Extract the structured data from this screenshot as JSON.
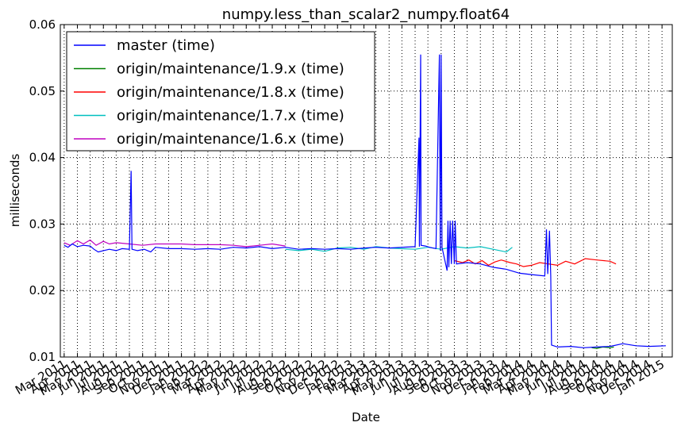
{
  "chart_data": {
    "type": "line",
    "title": "numpy.less_than_scalar2_numpy.float64",
    "xlabel": "Date",
    "ylabel": "milliseconds",
    "xlim": [
      "2011-02-20",
      "2015-01-25"
    ],
    "ylim": [
      0.01,
      0.06
    ],
    "grid": true,
    "legend_position": "top-left",
    "y_ticks": [
      "0.01",
      "0.02",
      "0.03",
      "0.04",
      "0.05",
      "0.06"
    ],
    "y_tick_values": [
      0.01,
      0.02,
      0.03,
      0.04,
      0.05,
      0.06
    ],
    "x_ticks": [
      {
        "date": "2011-03-01",
        "label": "Mar 2011"
      },
      {
        "date": "2011-04-01",
        "label": "Apr 2011"
      },
      {
        "date": "2011-05-01",
        "label": "May 2011"
      },
      {
        "date": "2011-06-01",
        "label": "Jun 2011"
      },
      {
        "date": "2011-07-01",
        "label": "Jul 2011"
      },
      {
        "date": "2011-08-01",
        "label": "Aug 2011"
      },
      {
        "date": "2011-09-01",
        "label": "Sep 2011"
      },
      {
        "date": "2011-10-01",
        "label": "Oct 2011"
      },
      {
        "date": "2011-11-01",
        "label": "Nov 2011"
      },
      {
        "date": "2011-12-01",
        "label": "Dec 2011"
      },
      {
        "date": "2012-01-01",
        "label": "Jan 2012"
      },
      {
        "date": "2012-02-01",
        "label": "Feb 2012"
      },
      {
        "date": "2012-03-01",
        "label": "Mar 2012"
      },
      {
        "date": "2012-04-01",
        "label": "Apr 2012"
      },
      {
        "date": "2012-05-01",
        "label": "May 2012"
      },
      {
        "date": "2012-06-01",
        "label": "Jun 2012"
      },
      {
        "date": "2012-07-01",
        "label": "Jul 2012"
      },
      {
        "date": "2012-08-01",
        "label": "Aug 2012"
      },
      {
        "date": "2012-09-01",
        "label": "Sep 2012"
      },
      {
        "date": "2012-10-01",
        "label": "Oct 2012"
      },
      {
        "date": "2012-11-01",
        "label": "Nov 2012"
      },
      {
        "date": "2012-12-01",
        "label": "Dec 2012"
      },
      {
        "date": "2013-01-01",
        "label": "Jan 2013"
      },
      {
        "date": "2013-02-01",
        "label": "Feb 2013"
      },
      {
        "date": "2013-03-01",
        "label": "Mar 2013"
      },
      {
        "date": "2013-04-01",
        "label": "Apr 2013"
      },
      {
        "date": "2013-05-01",
        "label": "May 2013"
      },
      {
        "date": "2013-06-01",
        "label": "Jun 2013"
      },
      {
        "date": "2013-07-01",
        "label": "Jul 2013"
      },
      {
        "date": "2013-08-01",
        "label": "Aug 2013"
      },
      {
        "date": "2013-09-01",
        "label": "Sep 2013"
      },
      {
        "date": "2013-10-01",
        "label": "Oct 2013"
      },
      {
        "date": "2013-11-01",
        "label": "Nov 2013"
      },
      {
        "date": "2013-12-01",
        "label": "Dec 2013"
      },
      {
        "date": "2014-01-01",
        "label": "Jan 2014"
      },
      {
        "date": "2014-02-01",
        "label": "Feb 2014"
      },
      {
        "date": "2014-03-01",
        "label": "Mar 2014"
      },
      {
        "date": "2014-04-01",
        "label": "Apr 2014"
      },
      {
        "date": "2014-05-01",
        "label": "May 2014"
      },
      {
        "date": "2014-06-01",
        "label": "Jun 2014"
      },
      {
        "date": "2014-07-01",
        "label": "Jul 2014"
      },
      {
        "date": "2014-08-01",
        "label": "Aug 2014"
      },
      {
        "date": "2014-09-01",
        "label": "Sep 2014"
      },
      {
        "date": "2014-10-01",
        "label": "Oct 2014"
      },
      {
        "date": "2014-11-01",
        "label": "Nov 2014"
      },
      {
        "date": "2014-12-01",
        "label": "Dec 2014"
      },
      {
        "date": "2015-01-01",
        "label": "Jan 2015"
      }
    ],
    "series": [
      {
        "name": "master (time)",
        "color": "#0000ff",
        "points": [
          [
            "2011-03-01",
            0.0268
          ],
          [
            "2011-03-10",
            0.0265
          ],
          [
            "2011-03-20",
            0.027
          ],
          [
            "2011-04-01",
            0.0266
          ],
          [
            "2011-04-15",
            0.0268
          ],
          [
            "2011-05-01",
            0.0267
          ],
          [
            "2011-05-10",
            0.0262
          ],
          [
            "2011-05-20",
            0.0258
          ],
          [
            "2011-06-01",
            0.026
          ],
          [
            "2011-06-15",
            0.0262
          ],
          [
            "2011-07-01",
            0.026
          ],
          [
            "2011-07-15",
            0.0263
          ],
          [
            "2011-08-01",
            0.0262
          ],
          [
            "2011-08-05",
            0.038
          ],
          [
            "2011-08-07",
            0.0262
          ],
          [
            "2011-08-20",
            0.026
          ],
          [
            "2011-09-05",
            0.0262
          ],
          [
            "2011-09-20",
            0.0258
          ],
          [
            "2011-10-01",
            0.0265
          ],
          [
            "2011-11-01",
            0.0263
          ],
          [
            "2011-12-01",
            0.0263
          ],
          [
            "2012-01-01",
            0.0262
          ],
          [
            "2012-02-01",
            0.0263
          ],
          [
            "2012-03-01",
            0.0262
          ],
          [
            "2012-04-01",
            0.0265
          ],
          [
            "2012-05-01",
            0.0264
          ],
          [
            "2012-06-01",
            0.0266
          ],
          [
            "2012-07-01",
            0.0263
          ],
          [
            "2012-08-01",
            0.0265
          ],
          [
            "2012-09-01",
            0.0262
          ],
          [
            "2012-10-01",
            0.0263
          ],
          [
            "2012-11-01",
            0.0262
          ],
          [
            "2012-12-01",
            0.0263
          ],
          [
            "2013-01-01",
            0.0262
          ],
          [
            "2013-02-01",
            0.0264
          ],
          [
            "2013-03-01",
            0.0265
          ],
          [
            "2013-04-01",
            0.0264
          ],
          [
            "2013-05-01",
            0.0265
          ],
          [
            "2013-06-01",
            0.0266
          ],
          [
            "2013-06-10",
            0.043
          ],
          [
            "2013-06-11",
            0.0266
          ],
          [
            "2013-06-14",
            0.0555
          ],
          [
            "2013-06-15",
            0.0268
          ],
          [
            "2013-06-25",
            0.0267
          ],
          [
            "2013-07-05",
            0.0265
          ],
          [
            "2013-07-20",
            0.0263
          ],
          [
            "2013-07-28",
            0.0555
          ],
          [
            "2013-07-30",
            0.026
          ],
          [
            "2013-08-01",
            0.0555
          ],
          [
            "2013-08-03",
            0.0265
          ],
          [
            "2013-08-15",
            0.023
          ],
          [
            "2013-08-17",
            0.0305
          ],
          [
            "2013-08-19",
            0.0235
          ],
          [
            "2013-08-22",
            0.0305
          ],
          [
            "2013-08-25",
            0.024
          ],
          [
            "2013-08-28",
            0.0305
          ],
          [
            "2013-09-01",
            0.024
          ],
          [
            "2013-09-03",
            0.0305
          ],
          [
            "2013-09-06",
            0.024
          ],
          [
            "2013-10-01",
            0.0242
          ],
          [
            "2013-11-01",
            0.024
          ],
          [
            "2013-12-01",
            0.0235
          ],
          [
            "2014-01-01",
            0.0232
          ],
          [
            "2014-02-01",
            0.0226
          ],
          [
            "2014-03-01",
            0.0224
          ],
          [
            "2014-04-01",
            0.0222
          ],
          [
            "2014-04-05",
            0.0292
          ],
          [
            "2014-04-08",
            0.0225
          ],
          [
            "2014-04-12",
            0.029
          ],
          [
            "2014-04-15",
            0.0222
          ],
          [
            "2014-04-17",
            0.0118
          ],
          [
            "2014-05-01",
            0.0115
          ],
          [
            "2014-06-01",
            0.0116
          ],
          [
            "2014-07-01",
            0.0114
          ],
          [
            "2014-08-01",
            0.0115
          ],
          [
            "2014-09-01",
            0.0116
          ],
          [
            "2014-10-01",
            0.012
          ],
          [
            "2014-11-01",
            0.0117
          ],
          [
            "2014-12-01",
            0.0116
          ],
          [
            "2015-01-10",
            0.0117
          ]
        ]
      },
      {
        "name": "origin/maintenance/1.9.x (time)",
        "color": "#008000",
        "points": [
          [
            "2014-07-20",
            0.0114
          ],
          [
            "2014-08-01",
            0.0113
          ],
          [
            "2014-08-15",
            0.0115
          ],
          [
            "2014-09-01",
            0.0114
          ],
          [
            "2014-09-10",
            0.0115
          ]
        ]
      },
      {
        "name": "origin/maintenance/1.8.x (time)",
        "color": "#ff0000",
        "points": [
          [
            "2013-09-01",
            0.0245
          ],
          [
            "2013-09-20",
            0.0242
          ],
          [
            "2013-10-05",
            0.0246
          ],
          [
            "2013-10-20",
            0.024
          ],
          [
            "2013-11-05",
            0.0245
          ],
          [
            "2013-11-20",
            0.0238
          ],
          [
            "2013-12-05",
            0.0243
          ],
          [
            "2013-12-20",
            0.0246
          ],
          [
            "2014-01-10",
            0.0242
          ],
          [
            "2014-01-25",
            0.024
          ],
          [
            "2014-02-10",
            0.0236
          ],
          [
            "2014-03-01",
            0.0238
          ],
          [
            "2014-03-20",
            0.0242
          ],
          [
            "2014-04-10",
            0.024
          ],
          [
            "2014-05-01",
            0.0238
          ],
          [
            "2014-05-20",
            0.0244
          ],
          [
            "2014-06-10",
            0.024
          ],
          [
            "2014-07-05",
            0.0248
          ],
          [
            "2014-08-01",
            0.0246
          ],
          [
            "2014-09-01",
            0.0244
          ],
          [
            "2014-09-15",
            0.024
          ]
        ]
      },
      {
        "name": "origin/maintenance/1.7.x (time)",
        "color": "#00bfbf",
        "points": [
          [
            "2012-08-01",
            0.0262
          ],
          [
            "2012-09-01",
            0.026
          ],
          [
            "2012-10-01",
            0.0262
          ],
          [
            "2012-11-01",
            0.0259
          ],
          [
            "2012-12-01",
            0.0264
          ],
          [
            "2013-01-01",
            0.0265
          ],
          [
            "2013-02-01",
            0.0262
          ],
          [
            "2013-03-01",
            0.0266
          ],
          [
            "2013-04-01",
            0.0264
          ],
          [
            "2013-05-01",
            0.0263
          ],
          [
            "2013-06-01",
            0.0262
          ],
          [
            "2013-07-01",
            0.0265
          ],
          [
            "2013-08-01",
            0.0262
          ],
          [
            "2013-09-01",
            0.0266
          ],
          [
            "2013-10-01",
            0.0264
          ],
          [
            "2013-11-01",
            0.0266
          ],
          [
            "2013-12-01",
            0.0262
          ],
          [
            "2014-01-01",
            0.0258
          ],
          [
            "2014-01-15",
            0.0265
          ]
        ]
      },
      {
        "name": "origin/maintenance/1.6.x (time)",
        "color": "#bf00bf",
        "points": [
          [
            "2011-03-01",
            0.0272
          ],
          [
            "2011-03-15",
            0.0268
          ],
          [
            "2011-04-01",
            0.0275
          ],
          [
            "2011-04-15",
            0.027
          ],
          [
            "2011-05-01",
            0.0276
          ],
          [
            "2011-05-15",
            0.0268
          ],
          [
            "2011-06-01",
            0.0274
          ],
          [
            "2011-06-15",
            0.027
          ],
          [
            "2011-07-01",
            0.0272
          ],
          [
            "2011-08-01",
            0.027
          ],
          [
            "2011-09-01",
            0.0268
          ],
          [
            "2011-10-01",
            0.027
          ],
          [
            "2011-11-01",
            0.027
          ],
          [
            "2011-12-01",
            0.027
          ],
          [
            "2012-01-01",
            0.0269
          ],
          [
            "2012-02-01",
            0.0269
          ],
          [
            "2012-03-01",
            0.0269
          ],
          [
            "2012-04-01",
            0.0268
          ],
          [
            "2012-05-01",
            0.0266
          ],
          [
            "2012-06-01",
            0.0268
          ],
          [
            "2012-07-01",
            0.027
          ],
          [
            "2012-08-01",
            0.0267
          ]
        ]
      }
    ]
  }
}
